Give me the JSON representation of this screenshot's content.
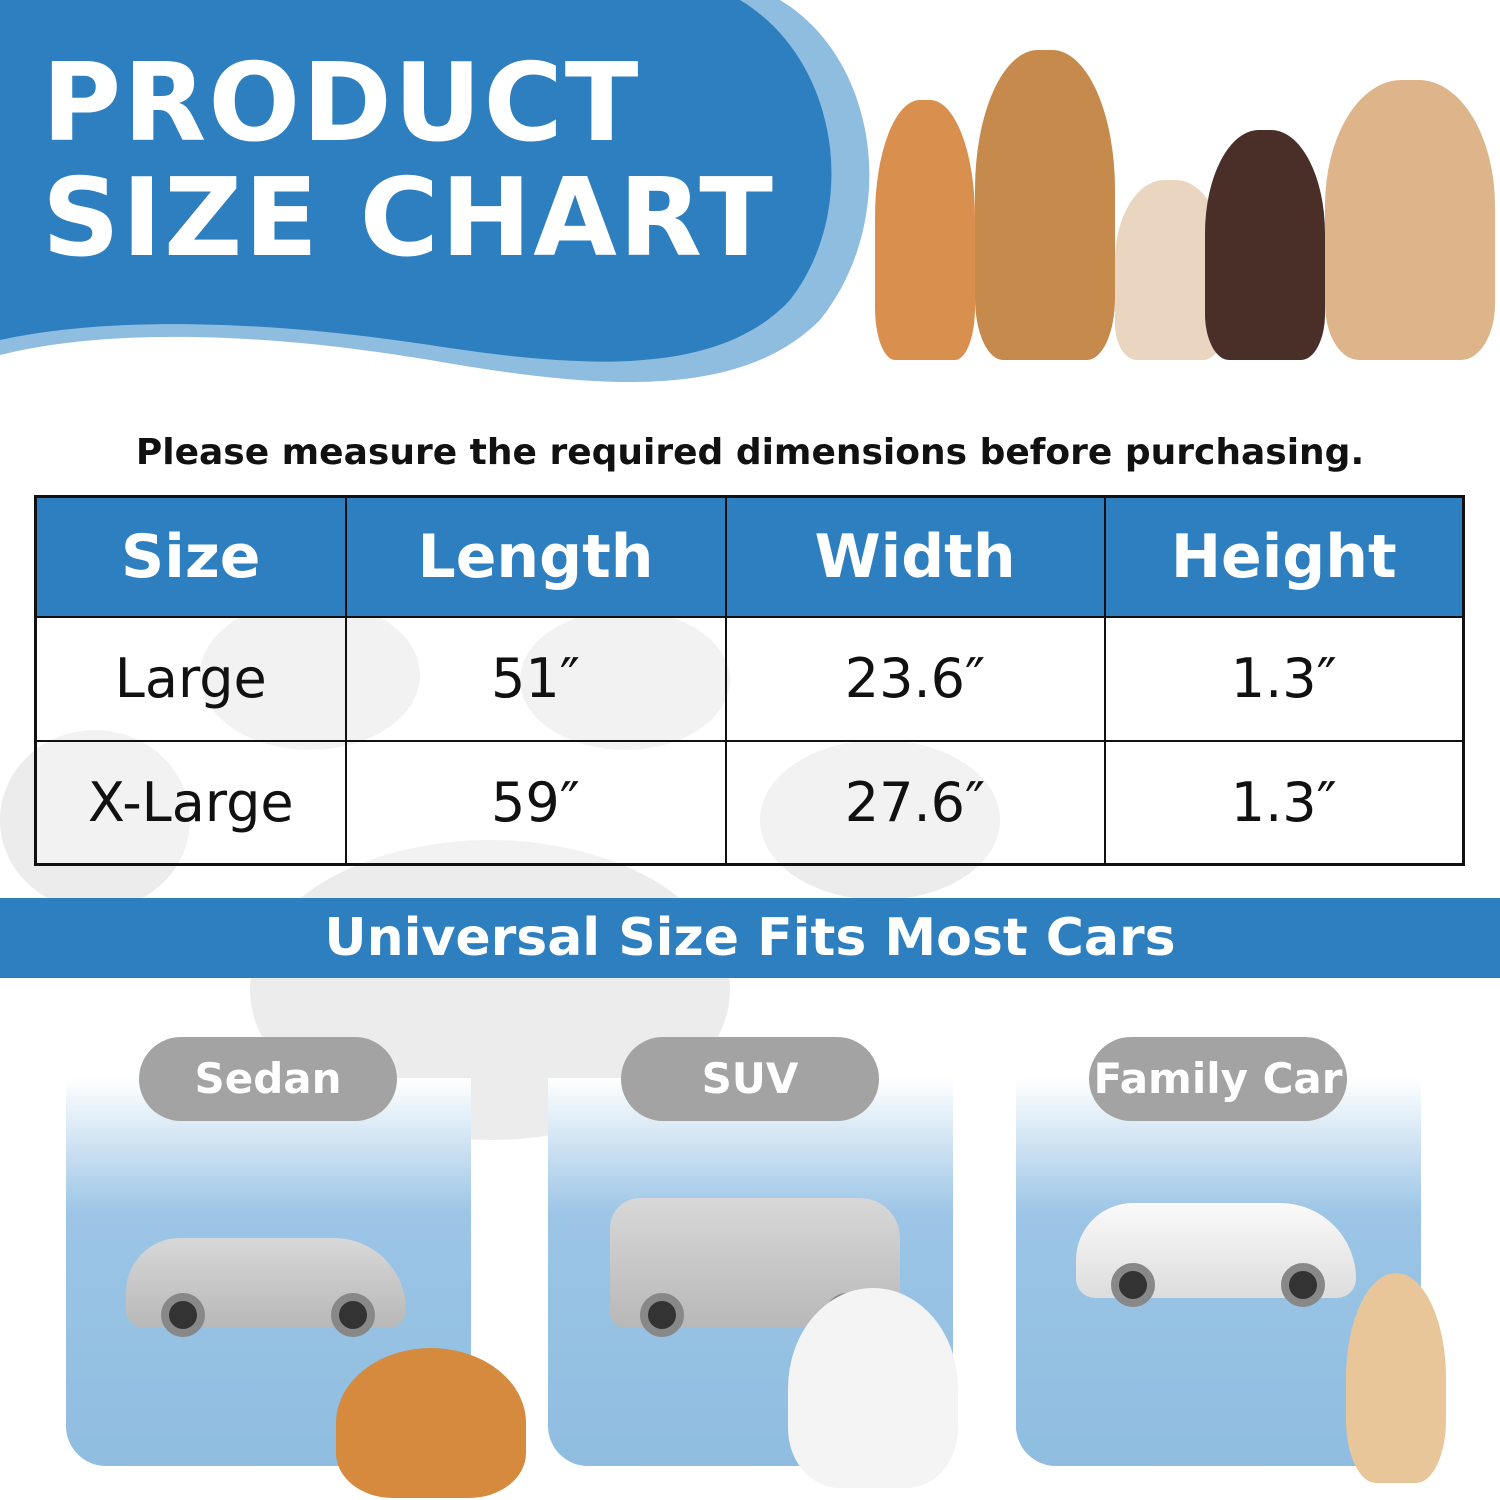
{
  "header": {
    "title_line1": "PRODUCT",
    "title_line2": "SIZE CHART"
  },
  "instruction": "Please measure the required dimensions before purchasing.",
  "table": {
    "headers": [
      "Size",
      "Length",
      "Width",
      "Height"
    ],
    "rows": [
      [
        "Large",
        "51″",
        "23.6″",
        "1.3″"
      ],
      [
        "X-Large",
        "59″",
        "27.6″",
        "1.3″"
      ]
    ]
  },
  "banner": "Universal Size Fits Most Cars",
  "cars": [
    {
      "label": "Sedan"
    },
    {
      "label": "SUV"
    },
    {
      "label": "Family Car"
    }
  ],
  "colors": {
    "brand_blue": "#2e7fc0",
    "pill_gray": "#a3a3a3",
    "card_blue": "#8fbde0"
  }
}
